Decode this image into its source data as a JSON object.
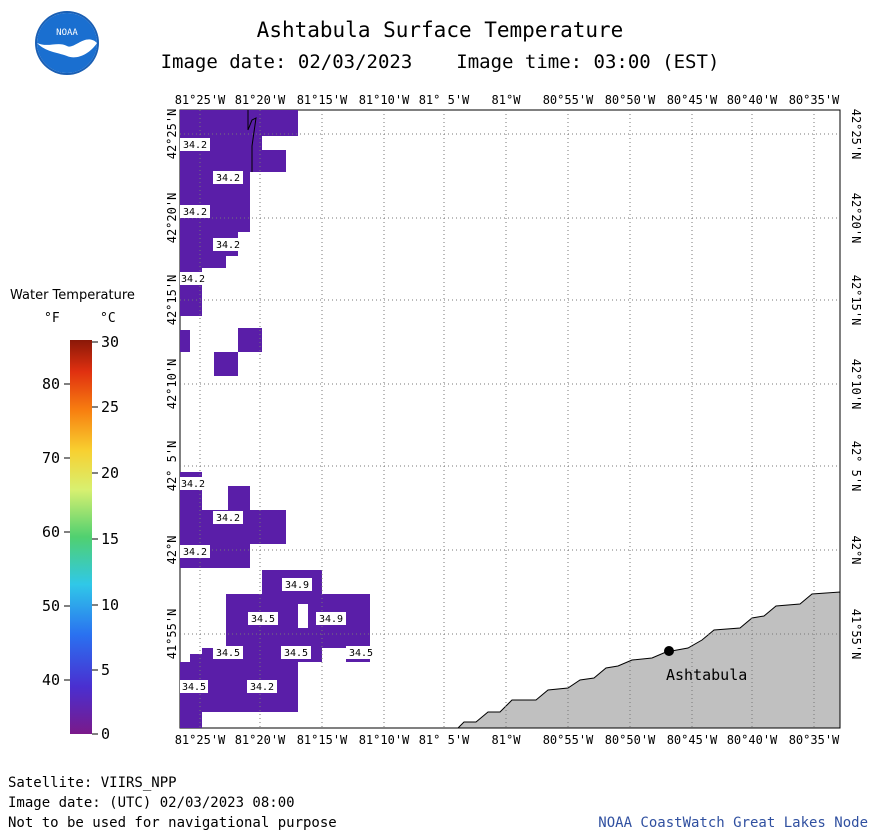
{
  "header": {
    "title": "Ashtabula Surface Temperature",
    "image_date": "Image date: 02/03/2023",
    "image_time": "Image time: 03:00 (EST)",
    "logo_text": "NOAA"
  },
  "map": {
    "lon_labels": [
      "81°25'W",
      "81°20'W",
      "81°15'W",
      "81°10'W",
      "81° 5'W",
      "81°W",
      "80°55'W",
      "80°50'W",
      "80°45'W",
      "80°40'W",
      "80°35'W"
    ],
    "lat_labels": [
      "42°25'N",
      "42°20'N",
      "42°15'N",
      "42°10'N",
      "42° 5'N",
      "42°N",
      "41°55'N"
    ],
    "place_label": "Ashtabula",
    "land_color": "#c0c0c0",
    "water_temp_color": "#5a1ea8",
    "temp_labels": [
      "34.2",
      "34.2",
      "34.2",
      "34.2",
      "34.2",
      "34.2",
      "34.2",
      "34.2",
      "34.9",
      "34.5",
      "34.9",
      "34.5",
      "34.5",
      "34.5",
      "34.5",
      "34.2"
    ]
  },
  "legend": {
    "title": "Water Temperature",
    "unit_f": "°F",
    "unit_c": "°C",
    "f_ticks": [
      "80",
      "70",
      "60",
      "50",
      "40"
    ],
    "c_ticks": [
      "30",
      "25",
      "20",
      "15",
      "10",
      "5",
      "0"
    ]
  },
  "footer": {
    "satellite": "Satellite: VIIRS_NPP",
    "utc_date": "Image date: (UTC) 02/03/2023  08:00",
    "disclaimer": "Not to be used for navigational purpose",
    "credit": "NOAA CoastWatch Great Lakes Node"
  }
}
